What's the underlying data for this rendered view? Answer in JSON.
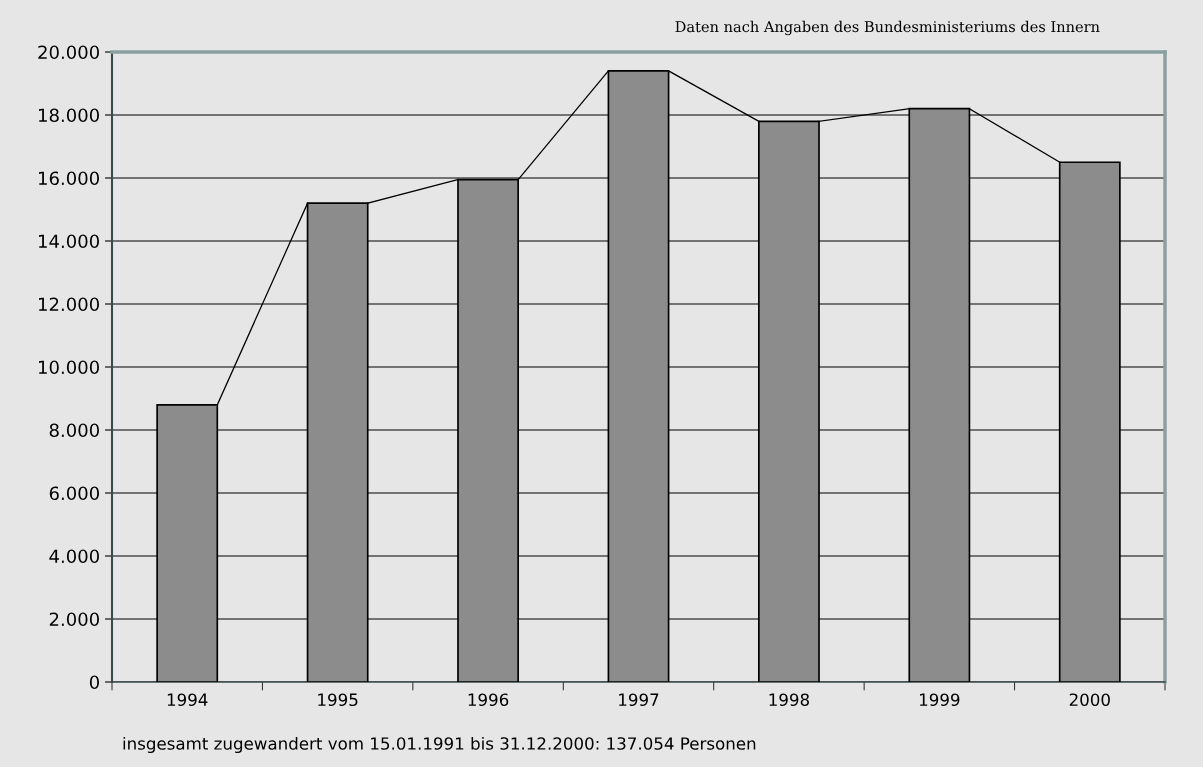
{
  "chart_data": {
    "type": "bar",
    "categories": [
      "1994",
      "1995",
      "1996",
      "1997",
      "1998",
      "1999",
      "2000"
    ],
    "values": [
      8800,
      15200,
      15950,
      19400,
      17800,
      18200,
      16500
    ],
    "color": "#8c8c8c",
    "ylim": [
      0,
      20000
    ],
    "yticks": [
      {
        "value": 0,
        "label": "0"
      },
      {
        "value": 2000,
        "label": "2.000"
      },
      {
        "value": 4000,
        "label": "4.000"
      },
      {
        "value": 6000,
        "label": "6.000"
      },
      {
        "value": 8000,
        "label": "8.000"
      },
      {
        "value": 10000,
        "label": "10.000"
      },
      {
        "value": 12000,
        "label": "12.000"
      },
      {
        "value": 14000,
        "label": "14.000"
      },
      {
        "value": 16000,
        "label": "16.000"
      },
      {
        "value": 18000,
        "label": "18.000"
      },
      {
        "value": 20000,
        "label": "20.000"
      }
    ],
    "grid": "y",
    "annotations": [
      "Daten nach Angaben des Bundesministeriums des Innern",
      "insgesamt zugewandert vom 15.01.1991 bis 31.12.2000: 137.054 Personen"
    ]
  }
}
